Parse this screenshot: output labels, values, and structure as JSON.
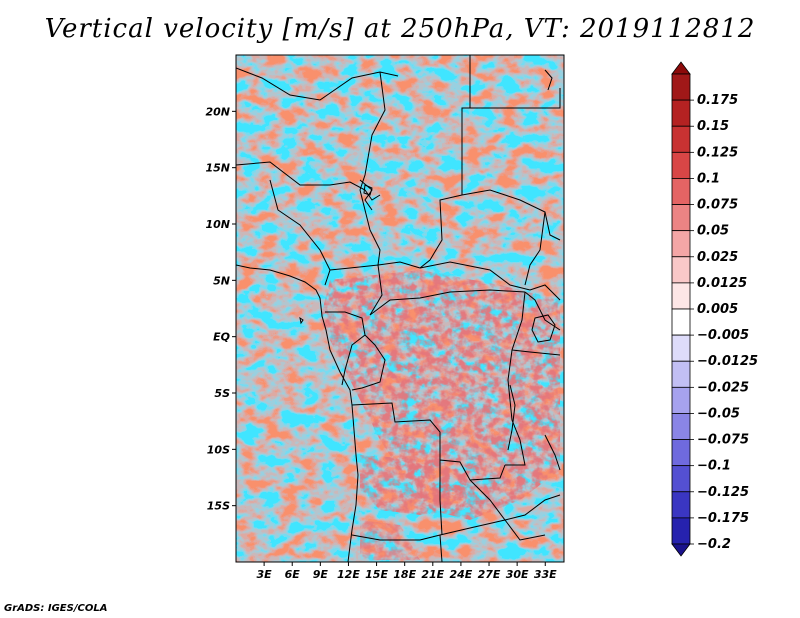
{
  "title": "Vertical velocity [m/s] at 250hPa, VT: 2019112812",
  "credit": "GrADS: IGES/COLA",
  "map": {
    "lon_range": [
      0,
      35
    ],
    "lat_range": [
      -20,
      25
    ],
    "lat_ticks": [
      {
        "value": 20,
        "label": "20N"
      },
      {
        "value": 15,
        "label": "15N"
      },
      {
        "value": 10,
        "label": "10N"
      },
      {
        "value": 5,
        "label": "5N"
      },
      {
        "value": 0,
        "label": "EQ"
      },
      {
        "value": -5,
        "label": "5S"
      },
      {
        "value": -10,
        "label": "10S"
      },
      {
        "value": -15,
        "label": "15S"
      }
    ],
    "lon_ticks": [
      {
        "value": 3,
        "label": "3E"
      },
      {
        "value": 6,
        "label": "6E"
      },
      {
        "value": 9,
        "label": "9E"
      },
      {
        "value": 12,
        "label": "12E"
      },
      {
        "value": 15,
        "label": "15E"
      },
      {
        "value": 18,
        "label": "18E"
      },
      {
        "value": 21,
        "label": "21E"
      },
      {
        "value": 24,
        "label": "24E"
      },
      {
        "value": 27,
        "label": "27E"
      },
      {
        "value": 30,
        "label": "30E"
      },
      {
        "value": 33,
        "label": "33E"
      }
    ]
  },
  "colorbar": {
    "levels": [
      {
        "label": "0.175",
        "color": "#a01818"
      },
      {
        "label": "0.15",
        "color": "#b42222"
      },
      {
        "label": "0.125",
        "color": "#c83232"
      },
      {
        "label": "0.1",
        "color": "#d84646"
      },
      {
        "label": "0.075",
        "color": "#e46464"
      },
      {
        "label": "0.05",
        "color": "#ec8484"
      },
      {
        "label": "0.025",
        "color": "#f4a6a6"
      },
      {
        "label": "0.0125",
        "color": "#f9c8c8"
      },
      {
        "label": "0.005",
        "color": "#fde6e6"
      },
      {
        "label": "−0.005",
        "color": "#ffffff"
      },
      {
        "label": "−0.0125",
        "color": "#dedcfa"
      },
      {
        "label": "−0.025",
        "color": "#c2bff4"
      },
      {
        "label": "−0.05",
        "color": "#a6a2ee"
      },
      {
        "label": "−0.075",
        "color": "#8a85e6"
      },
      {
        "label": "−0.1",
        "color": "#6f6ade"
      },
      {
        "label": "−0.125",
        "color": "#5450d2"
      },
      {
        "label": "−0.175",
        "color": "#3a36c2"
      },
      {
        "label": "−0.2",
        "color": "#2622ae"
      }
    ],
    "top_arrow_color": "#8c0a0a",
    "bottom_arrow_color": "#1a128c"
  }
}
